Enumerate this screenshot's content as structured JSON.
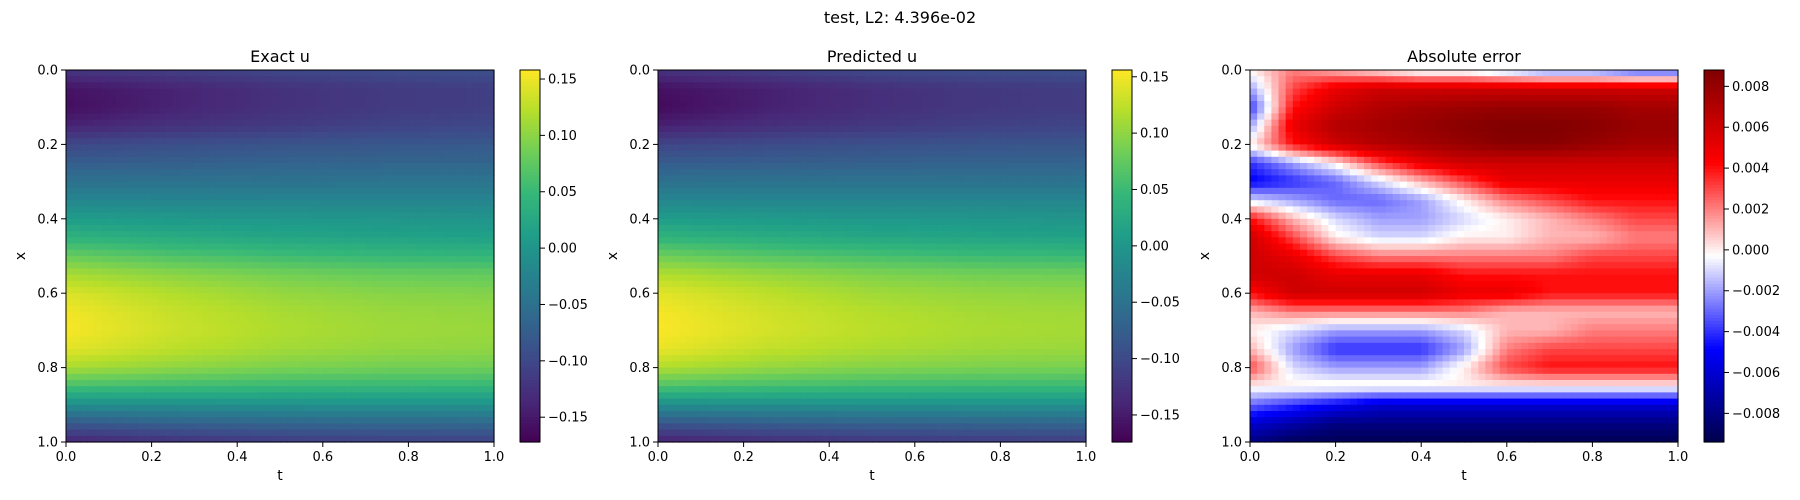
{
  "suptitle": "test, L2: 4.396e-02",
  "colors": {
    "viridis": [
      "#440154",
      "#482878",
      "#3e4989",
      "#31688e",
      "#26828e",
      "#1f9e89",
      "#35b779",
      "#6ece58",
      "#b5de2b",
      "#fde725"
    ],
    "seismic": [
      "#00004c",
      "#0000ff",
      "#ffffff",
      "#ff0000",
      "#800000"
    ]
  },
  "chart_data": [
    {
      "type": "heatmap",
      "title": "Exact u",
      "xlabel": "t",
      "ylabel": "x",
      "xlim": [
        0,
        1
      ],
      "ylim": [
        0,
        1
      ],
      "y_inverted": true,
      "xticks": [
        "0.0",
        "0.2",
        "0.4",
        "0.6",
        "0.8",
        "1.0"
      ],
      "yticks": [
        "0.0",
        "0.2",
        "0.4",
        "0.6",
        "0.8",
        "1.0"
      ],
      "colormap": "viridis",
      "clim": [
        -0.172,
        0.158
      ],
      "colorbar_ticks": [
        0.15,
        0.1,
        0.05,
        0.0,
        -0.05,
        -0.1,
        -0.15
      ],
      "colorbar_labels": [
        "0.15",
        "0.10",
        "0.05",
        "0.00",
        "−0.05",
        "−0.10",
        "−0.15"
      ],
      "x": [
        0.0,
        0.25,
        0.5,
        0.75,
        1.0
      ],
      "y": [
        0.0,
        0.05,
        0.1,
        0.15,
        0.2,
        0.25,
        0.3,
        0.35,
        0.4,
        0.45,
        0.5,
        0.55,
        0.6,
        0.65,
        0.7,
        0.75,
        0.8,
        0.85,
        0.9,
        0.95,
        1.0
      ],
      "z": [
        [
          -0.12,
          -0.11,
          -0.1,
          -0.095,
          -0.09
        ],
        [
          -0.155,
          -0.14,
          -0.125,
          -0.115,
          -0.11
        ],
        [
          -0.16,
          -0.14,
          -0.125,
          -0.115,
          -0.11
        ],
        [
          -0.14,
          -0.125,
          -0.115,
          -0.105,
          -0.1
        ],
        [
          -0.1,
          -0.092,
          -0.086,
          -0.082,
          -0.08
        ],
        [
          -0.075,
          -0.072,
          -0.068,
          -0.066,
          -0.065
        ],
        [
          -0.05,
          -0.048,
          -0.046,
          -0.045,
          -0.045
        ],
        [
          -0.02,
          -0.022,
          -0.022,
          -0.022,
          -0.022
        ],
        [
          0.01,
          0.005,
          0.002,
          0.0,
          -0.002
        ],
        [
          0.04,
          0.03,
          0.022,
          0.018,
          0.015
        ],
        [
          0.08,
          0.065,
          0.055,
          0.048,
          0.045
        ],
        [
          0.115,
          0.1,
          0.088,
          0.08,
          0.078
        ],
        [
          0.14,
          0.12,
          0.105,
          0.098,
          0.095
        ],
        [
          0.152,
          0.13,
          0.115,
          0.107,
          0.104
        ],
        [
          0.155,
          0.133,
          0.118,
          0.11,
          0.107
        ],
        [
          0.145,
          0.125,
          0.112,
          0.105,
          0.102
        ],
        [
          0.115,
          0.102,
          0.092,
          0.087,
          0.085
        ],
        [
          0.06,
          0.055,
          0.05,
          0.048,
          0.047
        ],
        [
          -0.01,
          -0.008,
          -0.006,
          -0.005,
          -0.005
        ],
        [
          -0.08,
          -0.07,
          -0.065,
          -0.062,
          -0.06
        ],
        [
          -0.14,
          -0.125,
          -0.115,
          -0.11,
          -0.108
        ]
      ]
    },
    {
      "type": "heatmap",
      "title": "Predicted u",
      "xlabel": "t",
      "ylabel": "x",
      "xlim": [
        0,
        1
      ],
      "ylim": [
        0,
        1
      ],
      "y_inverted": true,
      "xticks": [
        "0.0",
        "0.2",
        "0.4",
        "0.6",
        "0.8",
        "1.0"
      ],
      "yticks": [
        "0.0",
        "0.2",
        "0.4",
        "0.6",
        "0.8",
        "1.0"
      ],
      "colormap": "viridis",
      "clim": [
        -0.174,
        0.156
      ],
      "colorbar_ticks": [
        0.15,
        0.1,
        0.05,
        0.0,
        -0.05,
        -0.1,
        -0.15
      ],
      "colorbar_labels": [
        "0.15",
        "0.10",
        "0.05",
        "0.00",
        "−0.05",
        "−0.10",
        "−0.15"
      ],
      "x": [
        0.0,
        0.25,
        0.5,
        0.75,
        1.0
      ],
      "y": [
        0.0,
        0.05,
        0.1,
        0.15,
        0.2,
        0.25,
        0.3,
        0.35,
        0.4,
        0.45,
        0.5,
        0.55,
        0.6,
        0.65,
        0.7,
        0.75,
        0.8,
        0.85,
        0.9,
        0.95,
        1.0
      ],
      "z": [
        [
          -0.125,
          -0.112,
          -0.1,
          -0.095,
          -0.092
        ],
        [
          -0.16,
          -0.145,
          -0.13,
          -0.12,
          -0.115
        ],
        [
          -0.165,
          -0.145,
          -0.13,
          -0.12,
          -0.115
        ],
        [
          -0.145,
          -0.13,
          -0.12,
          -0.11,
          -0.105
        ],
        [
          -0.105,
          -0.098,
          -0.092,
          -0.088,
          -0.086
        ],
        [
          -0.078,
          -0.076,
          -0.073,
          -0.071,
          -0.07
        ],
        [
          -0.052,
          -0.05,
          -0.049,
          -0.048,
          -0.048
        ],
        [
          -0.022,
          -0.023,
          -0.023,
          -0.023,
          -0.023
        ],
        [
          0.008,
          0.004,
          0.001,
          -0.001,
          -0.003
        ],
        [
          0.04,
          0.03,
          0.022,
          0.018,
          0.015
        ],
        [
          0.082,
          0.068,
          0.058,
          0.051,
          0.048
        ],
        [
          0.118,
          0.104,
          0.092,
          0.085,
          0.082
        ],
        [
          0.142,
          0.124,
          0.109,
          0.102,
          0.099
        ],
        [
          0.152,
          0.133,
          0.119,
          0.111,
          0.108
        ],
        [
          0.155,
          0.136,
          0.122,
          0.114,
          0.111
        ],
        [
          0.146,
          0.126,
          0.115,
          0.108,
          0.105
        ],
        [
          0.117,
          0.103,
          0.094,
          0.09,
          0.088
        ],
        [
          0.063,
          0.057,
          0.052,
          0.05,
          0.049
        ],
        [
          -0.012,
          -0.01,
          -0.008,
          -0.007,
          -0.007
        ],
        [
          -0.085,
          -0.076,
          -0.071,
          -0.068,
          -0.066
        ],
        [
          -0.146,
          -0.132,
          -0.122,
          -0.117,
          -0.115
        ]
      ]
    },
    {
      "type": "heatmap",
      "title": "Absolute error",
      "xlabel": "t",
      "ylabel": "x",
      "xlim": [
        0,
        1
      ],
      "ylim": [
        0,
        1
      ],
      "y_inverted": true,
      "xticks": [
        "0.0",
        "0.2",
        "0.4",
        "0.6",
        "0.8",
        "1.0"
      ],
      "yticks": [
        "0.0",
        "0.2",
        "0.4",
        "0.6",
        "0.8",
        "1.0"
      ],
      "colormap": "seismic",
      "clim": [
        -0.0094,
        0.0088
      ],
      "colorbar_ticks": [
        0.008,
        0.006,
        0.004,
        0.002,
        0.0,
        -0.002,
        -0.004,
        -0.006,
        -0.008
      ],
      "colorbar_labels": [
        "0.008",
        "0.006",
        "0.004",
        "0.002",
        "0.000",
        "−0.002",
        "−0.004",
        "−0.006",
        "−0.008"
      ],
      "x": [
        0.0,
        0.1,
        0.2,
        0.3,
        0.4,
        0.5,
        0.6,
        0.7,
        0.8,
        0.9,
        1.0
      ],
      "y": [
        0.0,
        0.05,
        0.1,
        0.15,
        0.2,
        0.25,
        0.3,
        0.35,
        0.4,
        0.45,
        0.5,
        0.55,
        0.6,
        0.65,
        0.7,
        0.75,
        0.8,
        0.85,
        0.9,
        0.95,
        1.0
      ],
      "z": [
        [
          0.0,
          0.002,
          0.001,
          0.0,
          -0.001,
          -0.001,
          -0.002,
          -0.003,
          -0.003,
          -0.004,
          -0.004
        ],
        [
          -0.002,
          0.003,
          0.005,
          0.006,
          0.006,
          0.006,
          0.006,
          0.006,
          0.006,
          0.006,
          0.006
        ],
        [
          -0.004,
          0.004,
          0.006,
          0.007,
          0.0075,
          0.0078,
          0.008,
          0.008,
          0.008,
          0.0075,
          0.0075
        ],
        [
          -0.002,
          0.005,
          0.007,
          0.0075,
          0.008,
          0.0085,
          0.0088,
          0.0088,
          0.0085,
          0.008,
          0.008
        ],
        [
          0.0,
          0.004,
          0.006,
          0.007,
          0.0075,
          0.008,
          0.0085,
          0.0085,
          0.008,
          0.0075,
          0.0075
        ],
        [
          -0.004,
          -0.002,
          0.0,
          0.003,
          0.005,
          0.006,
          0.006,
          0.006,
          0.006,
          0.006,
          0.006
        ],
        [
          -0.005,
          -0.004,
          -0.003,
          -0.001,
          0.001,
          0.003,
          0.005,
          0.005,
          0.005,
          0.005,
          0.005
        ],
        [
          -0.001,
          -0.002,
          -0.003,
          -0.003,
          -0.002,
          0.0,
          0.002,
          0.003,
          0.004,
          0.004,
          0.004
        ],
        [
          0.004,
          0.001,
          -0.001,
          -0.002,
          -0.002,
          -0.001,
          0.0,
          0.001,
          0.002,
          0.003,
          0.003
        ],
        [
          0.006,
          0.003,
          0.0,
          -0.001,
          -0.001,
          0.0,
          0.0,
          0.001,
          0.001,
          0.002,
          0.002
        ],
        [
          0.006,
          0.005,
          0.003,
          0.002,
          0.002,
          0.002,
          0.002,
          0.002,
          0.003,
          0.003,
          0.003
        ],
        [
          0.006,
          0.006,
          0.005,
          0.005,
          0.005,
          0.004,
          0.004,
          0.004,
          0.004,
          0.004,
          0.004
        ],
        [
          0.004,
          0.006,
          0.006,
          0.006,
          0.006,
          0.005,
          0.005,
          0.004,
          0.004,
          0.004,
          0.004
        ],
        [
          0.001,
          0.002,
          0.002,
          0.002,
          0.002,
          0.002,
          0.001,
          0.001,
          0.001,
          0.001,
          0.001
        ],
        [
          0.0,
          -0.001,
          -0.002,
          -0.002,
          -0.002,
          -0.001,
          0.001,
          0.001,
          0.002,
          0.002,
          0.002
        ],
        [
          0.001,
          -0.002,
          -0.004,
          -0.004,
          -0.004,
          -0.002,
          0.002,
          0.003,
          0.003,
          0.003,
          0.003
        ],
        [
          0.003,
          -0.001,
          -0.002,
          -0.002,
          -0.002,
          0.0,
          0.003,
          0.004,
          0.004,
          0.004,
          0.004
        ],
        [
          0.0,
          0.0,
          0.0,
          0.0,
          0.0,
          0.0,
          0.0,
          0.0,
          0.0,
          0.0,
          0.0
        ],
        [
          -0.003,
          -0.004,
          -0.005,
          -0.006,
          -0.006,
          -0.006,
          -0.006,
          -0.006,
          -0.006,
          -0.006,
          -0.006
        ],
        [
          -0.006,
          -0.007,
          -0.008,
          -0.008,
          -0.008,
          -0.008,
          -0.008,
          -0.008,
          -0.008,
          -0.008,
          -0.008
        ],
        [
          -0.008,
          -0.009,
          -0.0092,
          -0.0092,
          -0.0092,
          -0.0092,
          -0.0092,
          -0.0092,
          -0.0092,
          -0.0092,
          -0.0092
        ]
      ]
    }
  ]
}
